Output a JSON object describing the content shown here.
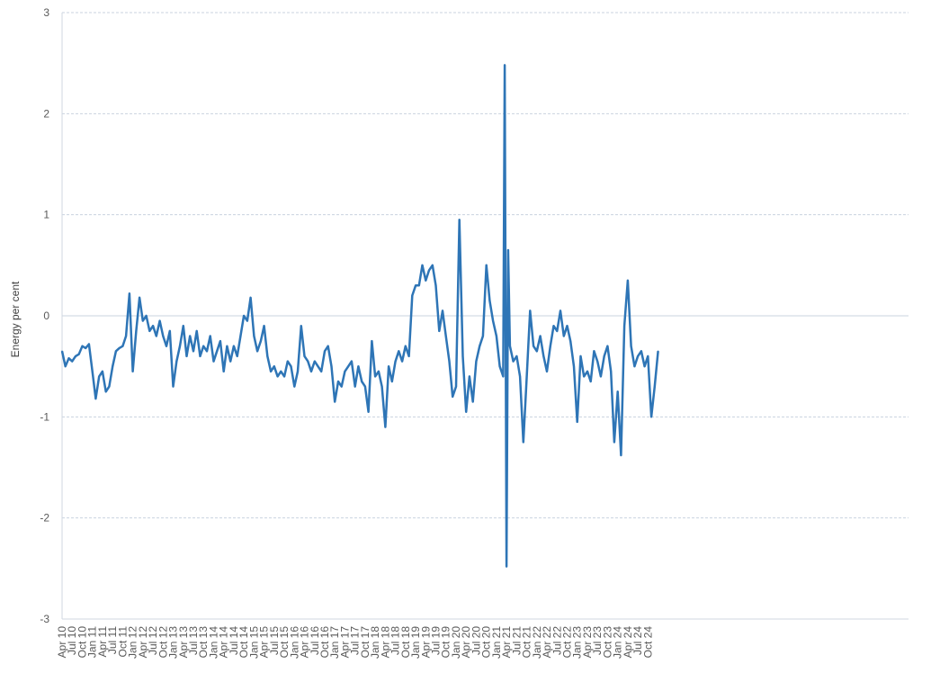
{
  "chart_data": {
    "type": "line",
    "title": "",
    "ylabel": "Energy per cent",
    "xlabel": "",
    "ylim": [
      -3,
      3
    ],
    "yticks": [
      3,
      2,
      1,
      0,
      -1,
      -2,
      -3
    ],
    "grid": "horizontal dashed",
    "legend": "none",
    "x_tick_labels": [
      "Apr 10",
      "Jul 10",
      "Oct 10",
      "Jan 11",
      "Apr 11",
      "Jul 11",
      "Oct 11",
      "Jan 12",
      "Apr 12",
      "Jul 12",
      "Oct 12",
      "Jan 13",
      "Apr 13",
      "Jul 13",
      "Oct 13",
      "Jan 14",
      "Apr 14",
      "Jul 14",
      "Oct 14",
      "Jan 15",
      "Apr 15",
      "Jul 15",
      "Oct 15",
      "Jan 16",
      "Apr 16",
      "Jul 16",
      "Oct 16",
      "Jan 17",
      "Apr 17",
      "Jul 17",
      "Oct 17",
      "Jan 18",
      "Apr 18",
      "Jul 18",
      "Oct 18",
      "Jan 19",
      "Apr 19",
      "Jul 19",
      "Oct 19",
      "Jan 20",
      "Apr 20",
      "Jul 20",
      "Oct 20",
      "Jan 21",
      "Apr 21",
      "Jul 21",
      "Oct 21",
      "Jan 22",
      "Apr 22",
      "Jul 22",
      "Oct 22",
      "Jan 23",
      "Apr 23",
      "Jul 23",
      "Oct 23",
      "Jan 24",
      "Apr 24",
      "Jul 24",
      "Oct 24"
    ],
    "series": [
      {
        "color": "#2e75b6",
        "points": [
          [
            "2010-04",
            -0.35
          ],
          [
            "2010-05",
            -0.5
          ],
          [
            "2010-06",
            -0.42
          ],
          [
            "2010-07",
            -0.45
          ],
          [
            "2010-08",
            -0.4
          ],
          [
            "2010-09",
            -0.38
          ],
          [
            "2010-10",
            -0.3
          ],
          [
            "2010-11",
            -0.32
          ],
          [
            "2010-12",
            -0.28
          ],
          [
            "2011-01",
            -0.55
          ],
          [
            "2011-02",
            -0.82
          ],
          [
            "2011-03",
            -0.6
          ],
          [
            "2011-04",
            -0.55
          ],
          [
            "2011-05",
            -0.75
          ],
          [
            "2011-06",
            -0.7
          ],
          [
            "2011-07",
            -0.5
          ],
          [
            "2011-08",
            -0.35
          ],
          [
            "2011-09",
            -0.32
          ],
          [
            "2011-10",
            -0.3
          ],
          [
            "2011-11",
            -0.2
          ],
          [
            "2011-12",
            0.22
          ],
          [
            "2012-01",
            -0.55
          ],
          [
            "2012-02",
            -0.15
          ],
          [
            "2012-03",
            0.18
          ],
          [
            "2012-04",
            -0.05
          ],
          [
            "2012-05",
            0.0
          ],
          [
            "2012-06",
            -0.15
          ],
          [
            "2012-07",
            -0.1
          ],
          [
            "2012-08",
            -0.2
          ],
          [
            "2012-09",
            -0.05
          ],
          [
            "2012-10",
            -0.2
          ],
          [
            "2012-11",
            -0.3
          ],
          [
            "2012-12",
            -0.15
          ],
          [
            "2013-01",
            -0.7
          ],
          [
            "2013-02",
            -0.45
          ],
          [
            "2013-03",
            -0.3
          ],
          [
            "2013-04",
            -0.1
          ],
          [
            "2013-05",
            -0.4
          ],
          [
            "2013-06",
            -0.2
          ],
          [
            "2013-07",
            -0.35
          ],
          [
            "2013-08",
            -0.15
          ],
          [
            "2013-09",
            -0.4
          ],
          [
            "2013-10",
            -0.3
          ],
          [
            "2013-11",
            -0.35
          ],
          [
            "2013-12",
            -0.2
          ],
          [
            "2014-01",
            -0.45
          ],
          [
            "2014-02",
            -0.35
          ],
          [
            "2014-03",
            -0.25
          ],
          [
            "2014-04",
            -0.55
          ],
          [
            "2014-05",
            -0.3
          ],
          [
            "2014-06",
            -0.45
          ],
          [
            "2014-07",
            -0.3
          ],
          [
            "2014-08",
            -0.4
          ],
          [
            "2014-09",
            -0.2
          ],
          [
            "2014-10",
            0.0
          ],
          [
            "2014-11",
            -0.05
          ],
          [
            "2014-12",
            0.18
          ],
          [
            "2015-01",
            -0.2
          ],
          [
            "2015-02",
            -0.35
          ],
          [
            "2015-03",
            -0.25
          ],
          [
            "2015-04",
            -0.1
          ],
          [
            "2015-05",
            -0.4
          ],
          [
            "2015-06",
            -0.55
          ],
          [
            "2015-07",
            -0.5
          ],
          [
            "2015-08",
            -0.6
          ],
          [
            "2015-09",
            -0.55
          ],
          [
            "2015-10",
            -0.6
          ],
          [
            "2015-11",
            -0.45
          ],
          [
            "2015-12",
            -0.5
          ],
          [
            "2016-01",
            -0.7
          ],
          [
            "2016-02",
            -0.55
          ],
          [
            "2016-03",
            -0.1
          ],
          [
            "2016-04",
            -0.4
          ],
          [
            "2016-05",
            -0.45
          ],
          [
            "2016-06",
            -0.55
          ],
          [
            "2016-07",
            -0.45
          ],
          [
            "2016-08",
            -0.5
          ],
          [
            "2016-09",
            -0.55
          ],
          [
            "2016-10",
            -0.35
          ],
          [
            "2016-11",
            -0.3
          ],
          [
            "2016-12",
            -0.5
          ],
          [
            "2017-01",
            -0.85
          ],
          [
            "2017-02",
            -0.65
          ],
          [
            "2017-03",
            -0.7
          ],
          [
            "2017-04",
            -0.55
          ],
          [
            "2017-05",
            -0.5
          ],
          [
            "2017-06",
            -0.45
          ],
          [
            "2017-07",
            -0.7
          ],
          [
            "2017-08",
            -0.5
          ],
          [
            "2017-09",
            -0.65
          ],
          [
            "2017-10",
            -0.7
          ],
          [
            "2017-11",
            -0.95
          ],
          [
            "2017-12",
            -0.25
          ],
          [
            "2018-01",
            -0.6
          ],
          [
            "2018-02",
            -0.55
          ],
          [
            "2018-03",
            -0.7
          ],
          [
            "2018-04",
            -1.1
          ],
          [
            "2018-05",
            -0.5
          ],
          [
            "2018-06",
            -0.65
          ],
          [
            "2018-07",
            -0.45
          ],
          [
            "2018-08",
            -0.35
          ],
          [
            "2018-09",
            -0.45
          ],
          [
            "2018-10",
            -0.3
          ],
          [
            "2018-11",
            -0.4
          ],
          [
            "2018-12",
            0.2
          ],
          [
            "2019-01",
            0.3
          ],
          [
            "2019-02",
            0.3
          ],
          [
            "2019-03",
            0.5
          ],
          [
            "2019-04",
            0.35
          ],
          [
            "2019-05",
            0.45
          ],
          [
            "2019-06",
            0.5
          ],
          [
            "2019-07",
            0.3
          ],
          [
            "2019-08",
            -0.15
          ],
          [
            "2019-09",
            0.05
          ],
          [
            "2019-10",
            -0.2
          ],
          [
            "2019-11",
            -0.45
          ],
          [
            "2019-12",
            -0.8
          ],
          [
            "2020-01",
            -0.7
          ],
          [
            "2020-02",
            0.95
          ],
          [
            "2020-03",
            -0.4
          ],
          [
            "2020-04",
            -0.95
          ],
          [
            "2020-05",
            -0.6
          ],
          [
            "2020-06",
            -0.85
          ],
          [
            "2020-07",
            -0.45
          ],
          [
            "2020-08",
            -0.3
          ],
          [
            "2020-09",
            -0.2
          ],
          [
            "2020-10",
            0.5
          ],
          [
            "2020-11",
            0.15
          ],
          [
            "2020-12",
            -0.05
          ],
          [
            "2021-01",
            -0.2
          ],
          [
            "2021-02",
            -0.5
          ],
          [
            "2021-03",
            -0.6
          ],
          [
            "2021-03-15",
            2.48
          ],
          [
            "2021-04",
            -2.48
          ],
          [
            "2021-04-15",
            0.65
          ],
          [
            "2021-05",
            -0.3
          ],
          [
            "2021-06",
            -0.45
          ],
          [
            "2021-07",
            -0.4
          ],
          [
            "2021-08",
            -0.6
          ],
          [
            "2021-09",
            -1.25
          ],
          [
            "2021-10",
            -0.6
          ],
          [
            "2021-11",
            0.05
          ],
          [
            "2021-12",
            -0.3
          ],
          [
            "2022-01",
            -0.35
          ],
          [
            "2022-02",
            -0.2
          ],
          [
            "2022-03",
            -0.4
          ],
          [
            "2022-04",
            -0.55
          ],
          [
            "2022-05",
            -0.3
          ],
          [
            "2022-06",
            -0.1
          ],
          [
            "2022-07",
            -0.15
          ],
          [
            "2022-08",
            0.05
          ],
          [
            "2022-09",
            -0.2
          ],
          [
            "2022-10",
            -0.1
          ],
          [
            "2022-11",
            -0.25
          ],
          [
            "2022-12",
            -0.5
          ],
          [
            "2023-01",
            -1.05
          ],
          [
            "2023-02",
            -0.4
          ],
          [
            "2023-03",
            -0.6
          ],
          [
            "2023-04",
            -0.55
          ],
          [
            "2023-05",
            -0.65
          ],
          [
            "2023-06",
            -0.35
          ],
          [
            "2023-07",
            -0.45
          ],
          [
            "2023-08",
            -0.6
          ],
          [
            "2023-09",
            -0.4
          ],
          [
            "2023-10",
            -0.3
          ],
          [
            "2023-11",
            -0.55
          ],
          [
            "2023-12",
            -1.25
          ],
          [
            "2024-01",
            -0.75
          ],
          [
            "2024-02",
            -1.38
          ],
          [
            "2024-03",
            -0.1
          ],
          [
            "2024-04",
            0.35
          ],
          [
            "2024-05",
            -0.3
          ],
          [
            "2024-06",
            -0.5
          ],
          [
            "2024-07",
            -0.4
          ],
          [
            "2024-08",
            -0.35
          ],
          [
            "2024-09",
            -0.5
          ],
          [
            "2024-10",
            -0.4
          ],
          [
            "2024-11",
            -1.0
          ],
          [
            "2024-12",
            -0.7
          ],
          [
            "2025-01",
            -0.35
          ]
        ]
      }
    ]
  }
}
